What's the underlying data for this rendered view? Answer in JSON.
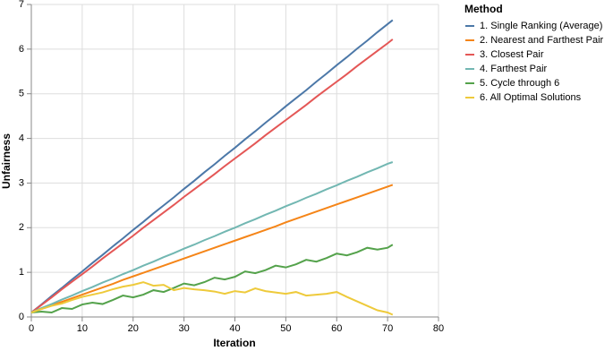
{
  "chart_data": {
    "type": "line",
    "x_label": "Iteration",
    "y_label": "Unfairness",
    "legend_title": "Method",
    "legend_position": "right",
    "grid": true,
    "xlim": [
      0,
      80
    ],
    "xticks": [
      0,
      10,
      20,
      30,
      40,
      50,
      60,
      70,
      80
    ],
    "ylim": [
      0,
      7
    ],
    "yticks": [
      0,
      1,
      2,
      3,
      4,
      5,
      6,
      7
    ],
    "x": [
      0,
      2,
      4,
      6,
      8,
      10,
      12,
      14,
      16,
      18,
      20,
      22,
      24,
      26,
      28,
      30,
      32,
      34,
      36,
      38,
      40,
      42,
      44,
      46,
      48,
      50,
      52,
      54,
      56,
      58,
      60,
      62,
      64,
      66,
      68,
      70,
      71
    ],
    "series": [
      {
        "name": "1. Single Ranking (Average)",
        "color": "#4c78a8",
        "values": [
          0.1,
          0.28,
          0.47,
          0.65,
          0.84,
          1.02,
          1.21,
          1.39,
          1.58,
          1.76,
          1.95,
          2.13,
          2.32,
          2.5,
          2.68,
          2.87,
          3.05,
          3.24,
          3.42,
          3.61,
          3.79,
          3.98,
          4.16,
          4.35,
          4.53,
          4.72,
          4.9,
          5.08,
          5.27,
          5.45,
          5.64,
          5.82,
          6.01,
          6.19,
          6.38,
          6.56,
          6.65
        ]
      },
      {
        "name": "2. Nearest and Farthest Pair",
        "color": "#f58518",
        "values": [
          0.1,
          0.18,
          0.26,
          0.34,
          0.42,
          0.5,
          0.58,
          0.66,
          0.74,
          0.83,
          0.91,
          0.99,
          1.07,
          1.15,
          1.23,
          1.31,
          1.39,
          1.47,
          1.55,
          1.63,
          1.71,
          1.79,
          1.87,
          1.95,
          2.03,
          2.12,
          2.2,
          2.28,
          2.36,
          2.44,
          2.52,
          2.6,
          2.68,
          2.76,
          2.84,
          2.92,
          2.96
        ]
      },
      {
        "name": "3. Closest Pair",
        "color": "#e45756",
        "values": [
          0.1,
          0.27,
          0.44,
          0.62,
          0.79,
          0.96,
          1.13,
          1.31,
          1.48,
          1.65,
          1.82,
          2.0,
          2.17,
          2.34,
          2.51,
          2.69,
          2.86,
          3.03,
          3.2,
          3.38,
          3.55,
          3.72,
          3.89,
          4.07,
          4.24,
          4.41,
          4.58,
          4.75,
          4.93,
          5.1,
          5.27,
          5.44,
          5.62,
          5.79,
          5.96,
          6.13,
          6.22
        ]
      },
      {
        "name": "4. Farthest Pair",
        "color": "#72b7b2",
        "values": [
          0.1,
          0.2,
          0.29,
          0.39,
          0.48,
          0.58,
          0.67,
          0.77,
          0.86,
          0.96,
          1.05,
          1.15,
          1.24,
          1.34,
          1.43,
          1.53,
          1.62,
          1.72,
          1.81,
          1.91,
          2.0,
          2.1,
          2.19,
          2.29,
          2.38,
          2.48,
          2.57,
          2.67,
          2.76,
          2.86,
          2.95,
          3.05,
          3.14,
          3.24,
          3.33,
          3.43,
          3.47
        ]
      },
      {
        "name": "5. Cycle through 6",
        "color": "#54a24b",
        "values": [
          0.1,
          0.12,
          0.1,
          0.2,
          0.18,
          0.28,
          0.32,
          0.29,
          0.38,
          0.48,
          0.44,
          0.5,
          0.6,
          0.56,
          0.65,
          0.75,
          0.71,
          0.78,
          0.88,
          0.84,
          0.9,
          1.02,
          0.98,
          1.05,
          1.15,
          1.11,
          1.18,
          1.28,
          1.24,
          1.32,
          1.42,
          1.38,
          1.45,
          1.55,
          1.51,
          1.55,
          1.62
        ]
      },
      {
        "name": "6. All Optimal Solutions",
        "color": "#eeca3b",
        "values": [
          0.1,
          0.18,
          0.25,
          0.3,
          0.38,
          0.45,
          0.5,
          0.55,
          0.62,
          0.68,
          0.72,
          0.78,
          0.7,
          0.72,
          0.6,
          0.65,
          0.62,
          0.6,
          0.57,
          0.52,
          0.58,
          0.55,
          0.64,
          0.58,
          0.55,
          0.52,
          0.56,
          0.48,
          0.5,
          0.52,
          0.56,
          0.45,
          0.35,
          0.25,
          0.15,
          0.1,
          0.05
        ]
      }
    ]
  }
}
